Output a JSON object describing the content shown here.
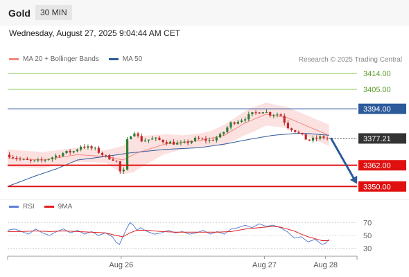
{
  "header": {
    "title": "Gold",
    "timeframe": "30 MIN",
    "datetime": "Wednesday, August 27, 2025 9:04:44 AM CET"
  },
  "legend_main": [
    {
      "label": "MA 20 + Bollinger Bands",
      "color": "#f4877e"
    },
    {
      "label": "MA 50",
      "color": "#2c5a9b"
    }
  ],
  "credit": "Research © 2025 Trading Central",
  "legend_rsi": [
    {
      "label": "RSI",
      "color": "#5b7fd6"
    },
    {
      "label": "9MA",
      "color": "#e02020"
    }
  ],
  "colors": {
    "bull": "#2e7d32",
    "bear": "#c62828",
    "band": "#fcdcdc",
    "ma20": "#f4877e",
    "ma50": "#2c5a9b",
    "target_line": "#9bcf6c",
    "target_text": "#5a9a2a",
    "resistance": "#2c5a9b",
    "support": "#e01010",
    "arrow": "#2c5a9b",
    "current": "#333333"
  },
  "chart_data": [
    {
      "type": "candlestick",
      "title": "",
      "ylim": [
        3345,
        3418
      ],
      "xlim": [
        0,
        100
      ],
      "x_ticks": [
        {
          "label": "Aug 26",
          "x": 32.5
        },
        {
          "label": "Aug 27",
          "x": 73.5
        },
        {
          "label": "Aug 28",
          "x": 91
        }
      ],
      "levels": [
        {
          "value": 3414.0,
          "label": "3414.00",
          "kind": "target"
        },
        {
          "value": 3405.0,
          "label": "3405.00",
          "kind": "target"
        },
        {
          "value": 3394.0,
          "label": "3394.00",
          "kind": "resistance"
        },
        {
          "value": 3377.21,
          "label": "3377.21",
          "kind": "current"
        },
        {
          "value": 3362.0,
          "label": "3362.00",
          "kind": "support"
        },
        {
          "value": 3350.0,
          "label": "3350.00",
          "kind": "support"
        }
      ],
      "forecast_arrow": {
        "from": [
          92.5,
          3377.5
        ],
        "to": [
          100,
          3351.5
        ]
      },
      "price_keyframes": [
        [
          0,
          3368
        ],
        [
          4,
          3365
        ],
        [
          8,
          3364
        ],
        [
          12,
          3366
        ],
        [
          16,
          3369
        ],
        [
          19,
          3370
        ],
        [
          21,
          3373
        ],
        [
          25,
          3371
        ],
        [
          28,
          3367
        ],
        [
          31,
          3365
        ],
        [
          33,
          3354
        ],
        [
          34,
          3375
        ],
        [
          36,
          3382
        ],
        [
          38,
          3376
        ],
        [
          42,
          3377
        ],
        [
          46,
          3375
        ],
        [
          50,
          3374
        ],
        [
          54,
          3377
        ],
        [
          58,
          3376
        ],
        [
          61,
          3379
        ],
        [
          64,
          3386
        ],
        [
          67,
          3388
        ],
        [
          70,
          3391
        ],
        [
          73,
          3393
        ],
        [
          75,
          3391
        ],
        [
          78,
          3391
        ],
        [
          80,
          3384
        ],
        [
          82,
          3382
        ],
        [
          84,
          3379
        ],
        [
          86,
          3376
        ],
        [
          88,
          3377
        ],
        [
          90,
          3378
        ],
        [
          92,
          3377
        ]
      ],
      "ma20_keyframes": [
        [
          0,
          3366
        ],
        [
          10,
          3365
        ],
        [
          20,
          3368
        ],
        [
          28,
          3367
        ],
        [
          33,
          3365
        ],
        [
          37,
          3369
        ],
        [
          45,
          3374
        ],
        [
          55,
          3376
        ],
        [
          62,
          3379
        ],
        [
          68,
          3386
        ],
        [
          74,
          3391
        ],
        [
          80,
          3389
        ],
        [
          86,
          3384
        ],
        [
          92,
          3379
        ]
      ],
      "ma50_keyframes": [
        [
          0,
          3350
        ],
        [
          8,
          3356
        ],
        [
          14,
          3360
        ],
        [
          20,
          3365
        ],
        [
          28,
          3367
        ],
        [
          35,
          3369
        ],
        [
          45,
          3371
        ],
        [
          55,
          3372
        ],
        [
          62,
          3374
        ],
        [
          70,
          3377
        ],
        [
          76,
          3379
        ],
        [
          82,
          3380
        ],
        [
          86,
          3380
        ],
        [
          92,
          3379
        ]
      ],
      "band_width_keyframes": [
        [
          0,
          5
        ],
        [
          10,
          4.5
        ],
        [
          20,
          4
        ],
        [
          28,
          3.5
        ],
        [
          33,
          8
        ],
        [
          36,
          10
        ],
        [
          44,
          6
        ],
        [
          50,
          4
        ],
        [
          58,
          4
        ],
        [
          62,
          6
        ],
        [
          70,
          7
        ],
        [
          78,
          6
        ],
        [
          86,
          6
        ],
        [
          92,
          6
        ]
      ]
    },
    {
      "type": "line",
      "title": "",
      "ylim": [
        20,
        80
      ],
      "xlim": [
        0,
        100
      ],
      "y_ticks": [
        {
          "value": 70,
          "label": "70"
        },
        {
          "value": 50,
          "label": "50"
        },
        {
          "value": 30,
          "label": "30"
        }
      ],
      "series": [
        {
          "name": "RSI",
          "values": [
            [
              0,
              58
            ],
            [
              2,
              60
            ],
            [
              4,
              56
            ],
            [
              6,
              52
            ],
            [
              8,
              60
            ],
            [
              10,
              54
            ],
            [
              12,
              50
            ],
            [
              14,
              56
            ],
            [
              16,
              60
            ],
            [
              18,
              54
            ],
            [
              20,
              58
            ],
            [
              22,
              52
            ],
            [
              24,
              56
            ],
            [
              26,
              50
            ],
            [
              28,
              54
            ],
            [
              30,
              48
            ],
            [
              31,
              40
            ],
            [
              32,
              36
            ],
            [
              33,
              48
            ],
            [
              34,
              60
            ],
            [
              35,
              70
            ],
            [
              36,
              66
            ],
            [
              37,
              58
            ],
            [
              38,
              62
            ],
            [
              40,
              56
            ],
            [
              42,
              52
            ],
            [
              44,
              54
            ],
            [
              46,
              58
            ],
            [
              48,
              54
            ],
            [
              50,
              56
            ],
            [
              52,
              52
            ],
            [
              54,
              54
            ],
            [
              56,
              58
            ],
            [
              58,
              52
            ],
            [
              60,
              56
            ],
            [
              62,
              52
            ],
            [
              64,
              60
            ],
            [
              66,
              62
            ],
            [
              68,
              66
            ],
            [
              70,
              62
            ],
            [
              72,
              68
            ],
            [
              74,
              64
            ],
            [
              76,
              66
            ],
            [
              78,
              62
            ],
            [
              80,
              56
            ],
            [
              82,
              46
            ],
            [
              84,
              48
            ],
            [
              86,
              40
            ],
            [
              88,
              44
            ],
            [
              90,
              36
            ],
            [
              91,
              38
            ],
            [
              92,
              44
            ]
          ]
        },
        {
          "name": "9MA",
          "values": [
            [
              0,
              56
            ],
            [
              4,
              56
            ],
            [
              8,
              57
            ],
            [
              12,
              56
            ],
            [
              16,
              57
            ],
            [
              20,
              56
            ],
            [
              24,
              55
            ],
            [
              28,
              54
            ],
            [
              31,
              50
            ],
            [
              33,
              48
            ],
            [
              35,
              54
            ],
            [
              37,
              58
            ],
            [
              40,
              58
            ],
            [
              44,
              56
            ],
            [
              48,
              55
            ],
            [
              52,
              55
            ],
            [
              56,
              55
            ],
            [
              60,
              55
            ],
            [
              64,
              56
            ],
            [
              68,
              60
            ],
            [
              72,
              62
            ],
            [
              76,
              64
            ],
            [
              78,
              63
            ],
            [
              80,
              60
            ],
            [
              82,
              57
            ],
            [
              84,
              52
            ],
            [
              86,
              48
            ],
            [
              88,
              45
            ],
            [
              90,
              42
            ],
            [
              92,
              42
            ]
          ]
        }
      ]
    }
  ]
}
